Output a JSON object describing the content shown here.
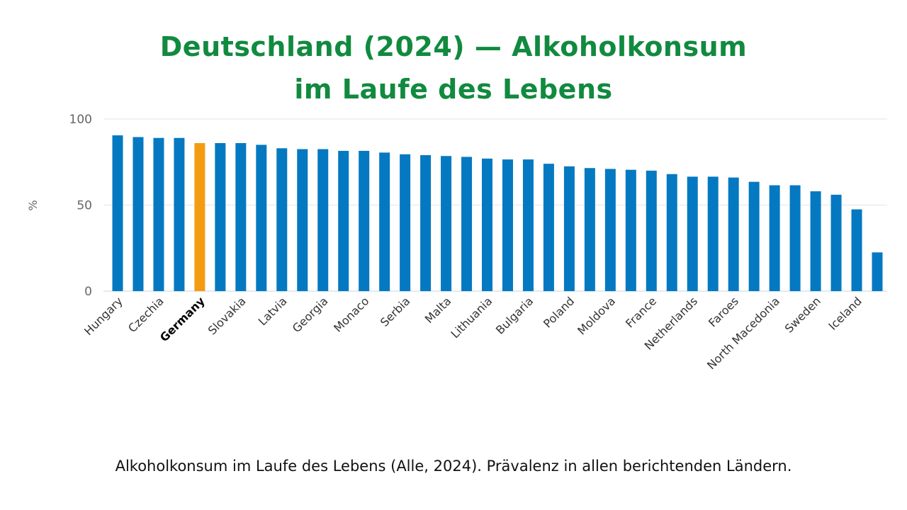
{
  "header": {
    "title_line1": "Deutschland (2024) — Alkoholkonsum",
    "title_line2": "im Laufe des Lebens"
  },
  "caption": "Alkoholkonsum im Laufe des Lebens (Alle, 2024). Prävalenz in allen berichtenden Ländern.",
  "colors": {
    "default_bar": "#0479c1",
    "highlight_bar": "#f39c12",
    "title": "#118a3f"
  },
  "chart_data": {
    "type": "bar",
    "categories": [
      "Hungary",
      "",
      "Czechia",
      "",
      "Germany",
      "",
      "Slovakia",
      "",
      "Latvia",
      "",
      "Georgia",
      "",
      "Monaco",
      "",
      "Serbia",
      "",
      "Malta",
      "",
      "Lithuania",
      "",
      "Bulgaria",
      "",
      "Poland",
      "",
      "Moldova",
      "",
      "France",
      "",
      "Netherlands",
      "",
      "Faroes",
      "",
      "North Macedonia",
      "",
      "Sweden",
      "",
      "Iceland",
      ""
    ],
    "values": [
      90.5,
      89.5,
      89,
      89,
      86,
      86,
      86,
      85,
      83,
      82.5,
      82.5,
      81.5,
      81.5,
      80.5,
      79.5,
      79,
      78.5,
      78,
      77,
      76.5,
      76.5,
      74,
      72.5,
      71.5,
      71,
      70.5,
      70,
      68,
      66.5,
      66.5,
      66,
      63.5,
      61.5,
      61.5,
      58,
      56,
      47.5,
      22.5
    ],
    "highlight": "Germany",
    "ylabel": "%",
    "ylim": [
      0,
      100
    ],
    "yticks": [
      0,
      50,
      100
    ],
    "grid": true,
    "legend": "none"
  }
}
